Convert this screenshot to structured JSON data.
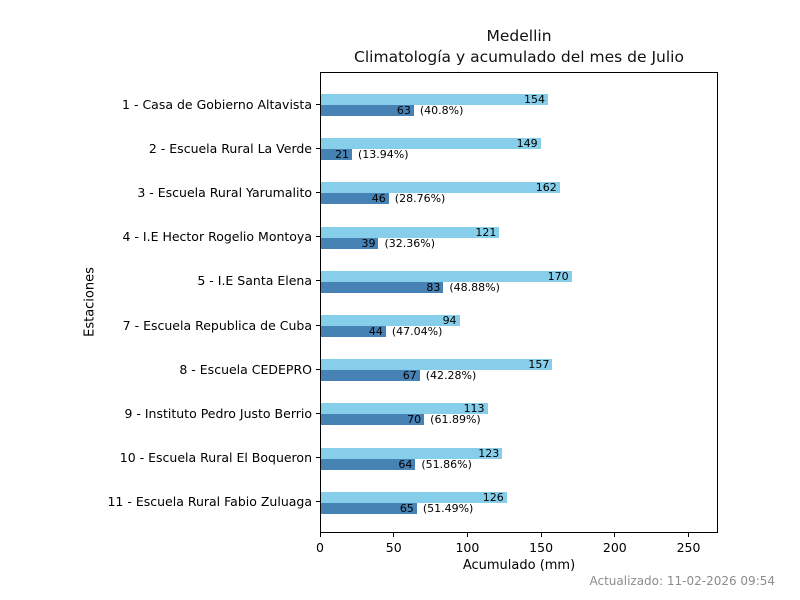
{
  "title": {
    "line1": "Medellin",
    "line2": "Climatología y acumulado del mes de Julio"
  },
  "axes": {
    "xlabel": "Acumulado (mm)",
    "ylabel": "Estaciones"
  },
  "footer": {
    "updated_text": "Actualizado: 11-02-2026 09:54"
  },
  "colors": {
    "climatologia_bar": "#87CEEB",
    "acumulado_bar": "#4682B4",
    "axis": "#000000",
    "footer_text": "#8c8c8c",
    "background": "#ffffff"
  },
  "chart_data": {
    "type": "bar",
    "orientation": "horizontal",
    "title": "Medellin\nClimatología y acumulado del mes de Julio",
    "xlabel": "Acumulado (mm)",
    "ylabel": "Estaciones",
    "xlim": [
      0,
      270
    ],
    "xticks": [
      0,
      50,
      100,
      150,
      200,
      250
    ],
    "grid": false,
    "legend": false,
    "categories": [
      "1 - Casa de Gobierno Altavista",
      "2 - Escuela Rural La Verde",
      "3 - Escuela Rural Yarumalito",
      "4 - I.E Hector Rogelio Montoya",
      "5 - I.E Santa Elena",
      "7 - Escuela Republica de Cuba",
      "8 - Escuela CEDEPRO",
      "9 - Instituto Pedro Justo Berrio",
      "10 - Escuela Rural El Boqueron",
      "11 - Escuela Rural Fabio Zuluaga"
    ],
    "series": [
      {
        "name": "Climatología",
        "color": "#87CEEB",
        "values": [
          154,
          149,
          162,
          121,
          170,
          94,
          157,
          113,
          123,
          126
        ]
      },
      {
        "name": "Acumulado",
        "color": "#4682B4",
        "values": [
          63,
          21,
          46,
          39,
          83,
          44,
          67,
          70,
          64,
          65
        ],
        "percent_labels": [
          "(40.8%)",
          "(13.94%)",
          "(28.76%)",
          "(32.36%)",
          "(48.88%)",
          "(47.04%)",
          "(42.28%)",
          "(61.89%)",
          "(51.86%)",
          "(51.49%)"
        ]
      }
    ]
  }
}
